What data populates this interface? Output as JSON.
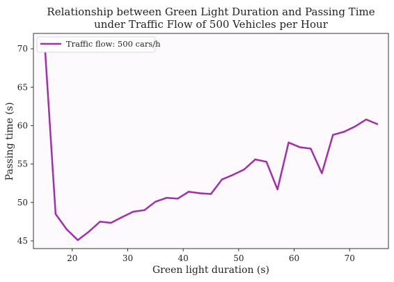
{
  "chart_data": {
    "type": "line",
    "title_line1": "Relationship between Green Light Duration and Passing Time",
    "title_line2": "under Traffic Flow of 500 Vehicles per Hour",
    "xlabel": "Green light duration (s)",
    "ylabel": "Passing time (s)",
    "xlim": [
      13.0,
      77.0
    ],
    "ylim": [
      44.0,
      72.0
    ],
    "xticks": [
      20,
      30,
      40,
      50,
      60,
      70
    ],
    "yticks": [
      45,
      50,
      55,
      60,
      65,
      70
    ],
    "grid": false,
    "legend_position": "top-left",
    "series": [
      {
        "name": "Traffic flow: 500 cars/h",
        "color": "#a52cae",
        "x": [
          15,
          17,
          19,
          21,
          23,
          25,
          27,
          29,
          31,
          33,
          35,
          37,
          39,
          41,
          43,
          45,
          47,
          49,
          51,
          53,
          55,
          57,
          59,
          61,
          63,
          65,
          67,
          69,
          71,
          73,
          75
        ],
        "y": [
          71.0,
          48.5,
          46.5,
          45.1,
          46.2,
          47.5,
          47.35,
          48.1,
          48.8,
          49.0,
          50.1,
          50.6,
          50.5,
          51.4,
          51.2,
          51.1,
          53.0,
          53.6,
          54.3,
          55.6,
          55.3,
          51.7,
          57.8,
          57.2,
          57.0,
          53.8,
          58.8,
          59.2,
          59.9,
          60.8,
          60.2
        ]
      }
    ]
  }
}
